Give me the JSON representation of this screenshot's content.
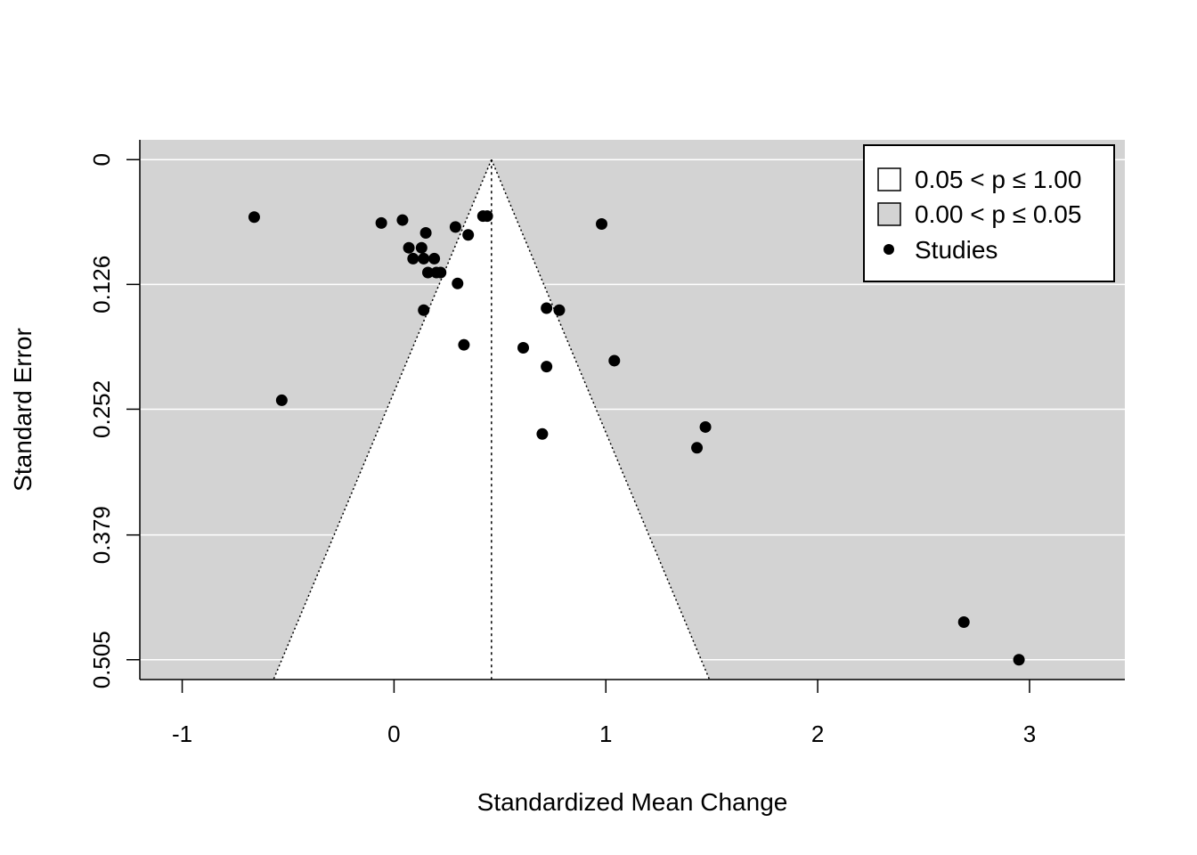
{
  "chart_data": {
    "type": "scatter",
    "subtype": "funnel",
    "title": "",
    "xlabel": "Standardized Mean Change",
    "ylabel": "Standard Error",
    "xlim": [
      -1.2,
      3.45
    ],
    "ylim": [
      0.525,
      -0.02
    ],
    "y_reversed": true,
    "x_ticks": [
      -1,
      0,
      1,
      2,
      3
    ],
    "x_tick_labels": [
      "-1",
      "0",
      "1",
      "2",
      "3"
    ],
    "y_ticks": [
      0,
      0.126,
      0.252,
      0.379,
      0.505
    ],
    "y_tick_labels": [
      "0",
      "0.126",
      "0.252",
      "0.379",
      "0.505"
    ],
    "grid": "horizontal",
    "pooled_estimate": 0.46,
    "funnel": {
      "significance": 0.05,
      "z": 1.96,
      "inner_region_label": "0.05 < p ≤ 1.00",
      "outer_region_label": "0.00 < p ≤ 0.05"
    },
    "legend": {
      "position": "top-right",
      "entries": [
        {
          "label": "0.05 < p ≤ 1.00",
          "symbol": "box",
          "color": "#ffffff"
        },
        {
          "label": "0.00 < p ≤ 0.05",
          "symbol": "box",
          "color": "#d3d3d3"
        },
        {
          "label": "Studies",
          "symbol": "point",
          "color": "#000000"
        }
      ]
    },
    "colors": {
      "background": "#d3d3d3",
      "funnel_fill": "#ffffff",
      "points": "#000000",
      "grid": "#ffffff"
    },
    "series": [
      {
        "name": "Studies",
        "points": [
          {
            "x": -0.66,
            "y": 0.058
          },
          {
            "x": -0.53,
            "y": 0.243
          },
          {
            "x": -0.06,
            "y": 0.064
          },
          {
            "x": 0.04,
            "y": 0.061
          },
          {
            "x": 0.15,
            "y": 0.074
          },
          {
            "x": 0.07,
            "y": 0.089
          },
          {
            "x": 0.13,
            "y": 0.089
          },
          {
            "x": 0.09,
            "y": 0.1
          },
          {
            "x": 0.14,
            "y": 0.1
          },
          {
            "x": 0.19,
            "y": 0.1
          },
          {
            "x": 0.16,
            "y": 0.114
          },
          {
            "x": 0.2,
            "y": 0.114
          },
          {
            "x": 0.22,
            "y": 0.114
          },
          {
            "x": 0.14,
            "y": 0.152
          },
          {
            "x": 0.29,
            "y": 0.068
          },
          {
            "x": 0.35,
            "y": 0.076
          },
          {
            "x": 0.3,
            "y": 0.125
          },
          {
            "x": 0.42,
            "y": 0.057
          },
          {
            "x": 0.44,
            "y": 0.057
          },
          {
            "x": 0.33,
            "y": 0.187
          },
          {
            "x": 0.61,
            "y": 0.19
          },
          {
            "x": 0.72,
            "y": 0.15
          },
          {
            "x": 0.78,
            "y": 0.152
          },
          {
            "x": 0.72,
            "y": 0.209
          },
          {
            "x": 0.98,
            "y": 0.065
          },
          {
            "x": 1.04,
            "y": 0.203
          },
          {
            "x": 0.7,
            "y": 0.277
          },
          {
            "x": 1.47,
            "y": 0.27
          },
          {
            "x": 1.43,
            "y": 0.291
          },
          {
            "x": 2.69,
            "y": 0.467
          },
          {
            "x": 2.95,
            "y": 0.505
          }
        ]
      }
    ]
  }
}
